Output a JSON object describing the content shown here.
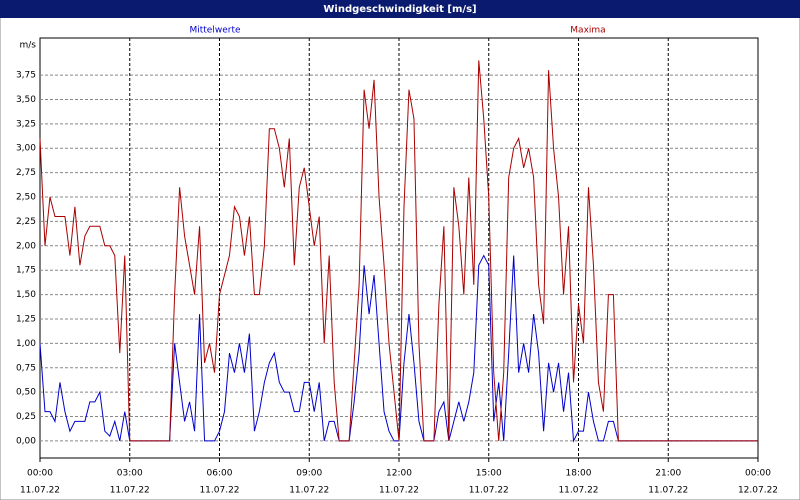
{
  "chart_data": {
    "type": "line",
    "title": "Windgeschwindigkeit [m/s]",
    "y_unit": "m/s",
    "x": [
      0,
      10,
      20,
      30,
      40,
      50,
      60,
      70,
      80,
      90,
      100,
      110,
      120,
      130,
      140,
      150,
      160,
      170,
      180,
      260,
      270,
      280,
      290,
      300,
      310,
      320,
      330,
      340,
      350,
      360,
      370,
      380,
      390,
      400,
      410,
      420,
      430,
      440,
      450,
      460,
      470,
      480,
      490,
      500,
      510,
      520,
      530,
      540,
      550,
      560,
      570,
      580,
      590,
      600,
      610,
      620,
      630,
      640,
      650,
      660,
      670,
      680,
      690,
      700,
      710,
      720,
      730,
      740,
      750,
      760,
      770,
      780,
      790,
      800,
      810,
      820,
      830,
      840,
      850,
      860,
      870,
      880,
      890,
      900,
      910,
      920,
      930,
      940,
      950,
      960,
      970,
      980,
      990,
      1000,
      1010,
      1020,
      1030,
      1040,
      1050,
      1060,
      1070,
      1080,
      1090,
      1100,
      1110,
      1120,
      1130,
      1140,
      1150,
      1160,
      1440
    ],
    "series": [
      {
        "name": "Mittelwerte",
        "color": "#0000cc",
        "values": [
          1.0,
          0.3,
          0.3,
          0.2,
          0.6,
          0.3,
          0.1,
          0.2,
          0.2,
          0.2,
          0.4,
          0.4,
          0.5,
          0.1,
          0.05,
          0.2,
          0,
          0.3,
          0,
          0,
          1.0,
          0.6,
          0.2,
          0.4,
          0.1,
          1.3,
          0,
          0,
          0,
          0.1,
          0.3,
          0.9,
          0.7,
          1.0,
          0.7,
          1.1,
          0.1,
          0.3,
          0.6,
          0.8,
          0.9,
          0.6,
          0.5,
          0.5,
          0.3,
          0.3,
          0.6,
          0.6,
          0.3,
          0.6,
          0,
          0.2,
          0.2,
          0,
          0,
          0,
          0.4,
          0.9,
          1.8,
          1.3,
          1.7,
          1.0,
          0.3,
          0.1,
          0,
          0,
          0.8,
          1.3,
          0.8,
          0.2,
          0,
          0,
          0,
          0.3,
          0.4,
          0,
          0.2,
          0.4,
          0.2,
          0.4,
          0.7,
          1.8,
          1.9,
          1.8,
          0.2,
          0.6,
          0,
          0.9,
          1.9,
          0.7,
          1.0,
          0.7,
          1.3,
          0.9,
          0.1,
          0.8,
          0.5,
          0.8,
          0.3,
          0.7,
          0,
          0.1,
          0.1,
          0.5,
          0.2,
          0,
          0,
          0.2,
          0.2,
          0,
          0
        ]
      },
      {
        "name": "Maxima",
        "color": "#aa0000",
        "values": [
          3.1,
          2.0,
          2.5,
          2.3,
          2.3,
          2.3,
          1.9,
          2.4,
          1.8,
          2.1,
          2.2,
          2.2,
          2.2,
          2.0,
          2.0,
          1.9,
          0.9,
          1.9,
          0,
          0,
          1.5,
          2.6,
          2.1,
          1.8,
          1.5,
          2.2,
          0.8,
          1.0,
          0.7,
          1.5,
          1.7,
          1.9,
          2.4,
          2.3,
          1.9,
          2.3,
          1.5,
          1.5,
          2.0,
          3.2,
          3.2,
          3.0,
          2.6,
          3.1,
          1.8,
          2.6,
          2.8,
          2.4,
          2.0,
          2.3,
          1.0,
          1.9,
          0.6,
          0,
          0,
          0,
          0.8,
          1.6,
          3.6,
          3.2,
          3.7,
          2.5,
          1.8,
          1.0,
          0.5,
          0,
          2.4,
          3.6,
          3.3,
          1.0,
          0,
          0,
          0,
          1.4,
          2.2,
          0,
          2.6,
          2.2,
          1.5,
          2.7,
          1.6,
          3.9,
          3.3,
          2.5,
          0.7,
          0,
          0.7,
          2.7,
          3.0,
          3.1,
          2.8,
          3.0,
          2.7,
          1.6,
          1.2,
          3.8,
          3.0,
          2.5,
          1.5,
          2.2,
          0.6,
          1.4,
          1.0,
          2.6,
          1.8,
          0.6,
          0.3,
          1.5,
          1.5,
          0,
          0
        ]
      }
    ],
    "xlim": [
      0,
      1440
    ],
    "xticks": [
      {
        "value": 0,
        "label": "00:00"
      },
      {
        "value": 180,
        "label": "03:00"
      },
      {
        "value": 360,
        "label": "06:00"
      },
      {
        "value": 540,
        "label": "09:00"
      },
      {
        "value": 720,
        "label": "12:00"
      },
      {
        "value": 900,
        "label": "15:00"
      },
      {
        "value": 1080,
        "label": "18:00"
      },
      {
        "value": 1260,
        "label": "21:00"
      },
      {
        "value": 1440,
        "label": "00:00"
      }
    ],
    "xtick_dates": [
      "11.07.22",
      "11.07.22",
      "11.07.22",
      "11.07.22",
      "11.07.22",
      "11.07.22",
      "11.07.22",
      "11.07.22",
      "12.07.22"
    ],
    "ylim": [
      -0.175,
      4.13
    ],
    "yticks": [
      {
        "value": 0,
        "label": "0,00"
      },
      {
        "value": 0.25,
        "label": "0,25"
      },
      {
        "value": 0.5,
        "label": "0,50"
      },
      {
        "value": 0.75,
        "label": "0,75"
      },
      {
        "value": 1,
        "label": "1,00"
      },
      {
        "value": 1.25,
        "label": "1,25"
      },
      {
        "value": 1.5,
        "label": "1,50"
      },
      {
        "value": 1.75,
        "label": "1,75"
      },
      {
        "value": 2,
        "label": "2,00"
      },
      {
        "value": 2.25,
        "label": "2,25"
      },
      {
        "value": 2.5,
        "label": "2,50"
      },
      {
        "value": 2.75,
        "label": "2,75"
      },
      {
        "value": 3,
        "label": "3,00"
      },
      {
        "value": 3.25,
        "label": "3,25"
      },
      {
        "value": 3.5,
        "label": "3,50"
      },
      {
        "value": 3.75,
        "label": "3,75"
      }
    ],
    "grid": true
  }
}
